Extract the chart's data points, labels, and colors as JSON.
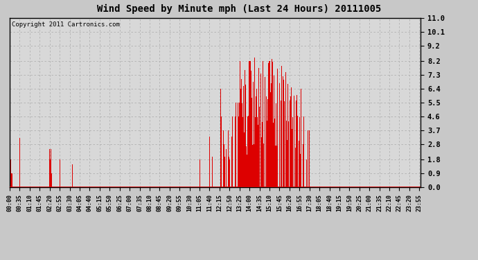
{
  "title": "Wind Speed by Minute mph (Last 24 Hours) 20111005",
  "copyright_text": "Copyright 2011 Cartronics.com",
  "bar_color": "#dd0000",
  "background_color": "#c8c8c8",
  "plot_background": "#d8d8d8",
  "yticks": [
    0.0,
    0.9,
    1.8,
    2.8,
    3.7,
    4.6,
    5.5,
    6.4,
    7.3,
    8.2,
    9.2,
    10.1,
    11.0
  ],
  "ylim": [
    0.0,
    11.0
  ],
  "num_minutes": 1440,
  "x_tick_labels": [
    "00:00",
    "00:35",
    "01:10",
    "01:45",
    "02:20",
    "02:55",
    "03:30",
    "04:05",
    "04:40",
    "05:15",
    "05:50",
    "06:25",
    "07:00",
    "07:35",
    "08:10",
    "08:45",
    "09:20",
    "09:55",
    "10:30",
    "11:05",
    "11:40",
    "12:15",
    "12:50",
    "13:25",
    "14:00",
    "14:35",
    "15:10",
    "15:45",
    "16:20",
    "16:55",
    "17:30",
    "18:05",
    "18:40",
    "19:15",
    "19:50",
    "20:25",
    "21:00",
    "21:35",
    "22:10",
    "22:45",
    "23:20",
    "23:55"
  ]
}
